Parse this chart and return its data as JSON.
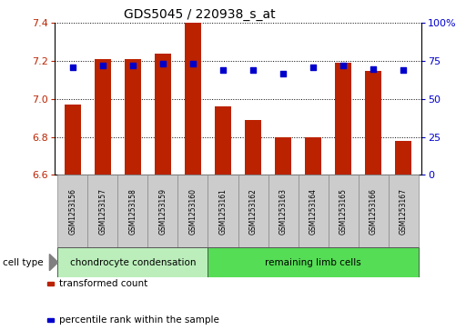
{
  "title": "GDS5045 / 220938_s_at",
  "categories": [
    "GSM1253156",
    "GSM1253157",
    "GSM1253158",
    "GSM1253159",
    "GSM1253160",
    "GSM1253161",
    "GSM1253162",
    "GSM1253163",
    "GSM1253164",
    "GSM1253165",
    "GSM1253166",
    "GSM1253167"
  ],
  "transformed_count": [
    6.97,
    7.21,
    7.21,
    7.24,
    7.4,
    6.96,
    6.89,
    6.8,
    6.8,
    7.19,
    7.15,
    6.78
  ],
  "percentile_rank": [
    71,
    72,
    72,
    73,
    73,
    69,
    69,
    67,
    71,
    72,
    70,
    69
  ],
  "ylim_left": [
    6.6,
    7.4
  ],
  "ylim_right": [
    0,
    100
  ],
  "yticks_left": [
    6.6,
    6.8,
    7.0,
    7.2,
    7.4
  ],
  "yticks_right": [
    0,
    25,
    50,
    75,
    100
  ],
  "bar_color": "#BB2200",
  "dot_color": "#0000CC",
  "group1_label": "chondrocyte condensation",
  "group2_label": "remaining limb cells",
  "group1_color": "#BBEEBB",
  "group2_color": "#55DD55",
  "group1_count": 5,
  "group2_count": 7,
  "cell_type_label": "cell type",
  "legend_bar_label": "transformed count",
  "legend_dot_label": "percentile rank within the sample",
  "bar_width": 0.55,
  "cat_bg": "#CCCCCC",
  "plot_bg": "#FFFFFF"
}
